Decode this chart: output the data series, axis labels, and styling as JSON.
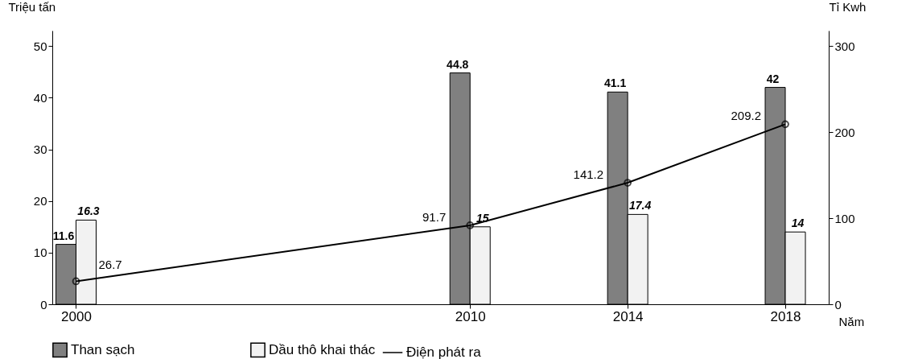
{
  "chart_data": {
    "type": "bar",
    "x": [
      2000,
      2010,
      2014,
      2018
    ],
    "xlim": [
      1999.5,
      2019
    ],
    "xticks": [
      2000,
      2010,
      2014,
      2018
    ],
    "xlabel": "Năm",
    "ylabel": "Triệu tấn",
    "y2label": "Tỉ Kwh",
    "ylim": [
      0,
      53
    ],
    "yticks": [
      0,
      10,
      20,
      30,
      40,
      50
    ],
    "y2lim": [
      0,
      318
    ],
    "y2ticks": [
      0,
      100,
      200,
      300
    ],
    "series": [
      {
        "name": "Than sạch",
        "color": "#808080",
        "values": [
          11.6,
          44.8,
          41.1,
          42
        ]
      },
      {
        "name": "Dầu thô khai thác",
        "color": "#f2f2f2",
        "values": [
          16.3,
          15,
          17.4,
          14
        ]
      },
      {
        "name": "Điện phát ra",
        "type": "line",
        "axis": "y2",
        "color": "#000000",
        "values": [
          26.7,
          91.7,
          141.2,
          209.2
        ]
      }
    ],
    "marker": "circle",
    "data_labels": true,
    "legend": "bottom",
    "grid": false
  }
}
